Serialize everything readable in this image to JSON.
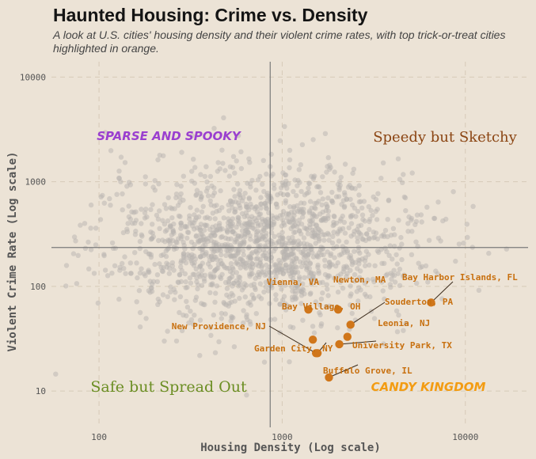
{
  "title": "Haunted Housing: Crime vs. Density",
  "subtitle": "A look at U.S. cities' housing density and their violent crime rates, with top trick-or-treat cities highlighted in orange.",
  "colors": {
    "background": "#ece3d6",
    "background_points": "#b8b4b0",
    "highlight": "#d0761a",
    "highlight_label": "#c8700f",
    "reference_lines": "#7a7a7a",
    "q_top_left": "#9a3fcf",
    "q_top_right": "#8b4513",
    "q_bottom_left": "#6b8e23",
    "q_bottom_right": "#f39c12"
  },
  "chart_data": {
    "type": "scatter",
    "x_scale": "log",
    "y_scale": "log",
    "xlabel": "Housing Density (Log scale)",
    "ylabel": "Violent Crime Rate (Log scale)",
    "xlim": [
      55,
      22000
    ],
    "ylim": [
      4.5,
      14000
    ],
    "x_ticks": [
      {
        "value": 100,
        "label": "100"
      },
      {
        "value": 1000,
        "label": "1000"
      },
      {
        "value": 10000,
        "label": "10000"
      }
    ],
    "y_ticks": [
      {
        "value": 10,
        "label": "10"
      },
      {
        "value": 100,
        "label": "100"
      },
      {
        "value": 1000,
        "label": "1000"
      },
      {
        "value": 10000,
        "label": "10000"
      }
    ],
    "grid": "dashed major gridlines",
    "reference_lines": {
      "x": 860,
      "y": 235
    },
    "quadrant_labels": [
      {
        "text": "SPARSE AND SPOOKY",
        "quadrant": "top-left"
      },
      {
        "text": "Speedy but Sketchy",
        "quadrant": "top-right"
      },
      {
        "text": "Safe but Spread Out",
        "quadrant": "bottom-left"
      },
      {
        "text": "CANDY KINGDOM",
        "quadrant": "bottom-right"
      }
    ],
    "highlighted": [
      {
        "name": "Vienna, VA",
        "x": 1390,
        "y": 60
      },
      {
        "name": "Newton, MA",
        "x": 2020,
        "y": 60
      },
      {
        "name": "Bay Harbor Islands, FL",
        "x": 6500,
        "y": 70
      },
      {
        "name": "Bay Village, OH",
        "x": 1470,
        "y": 31
      },
      {
        "name": "Souderton, PA",
        "x": 2360,
        "y": 43
      },
      {
        "name": "Leonia, NJ",
        "x": 2270,
        "y": 33
      },
      {
        "name": "New Providence, NJ",
        "x": 1530,
        "y": 23
      },
      {
        "name": "University Park, TX",
        "x": 2050,
        "y": 28
      },
      {
        "name": "Garden City, NY",
        "x": 1560,
        "y": 23
      },
      {
        "name": "Buffalo Grove, IL",
        "x": 1800,
        "y": 13.5
      }
    ],
    "background_series": {
      "description": "approx. 1,600 other U.S. cities shown as semi-transparent gray points",
      "x_log_mean": 2.9,
      "x_log_sd": 0.42,
      "y_log_mean": 2.42,
      "y_log_sd": 0.36,
      "count": 1600
    }
  }
}
